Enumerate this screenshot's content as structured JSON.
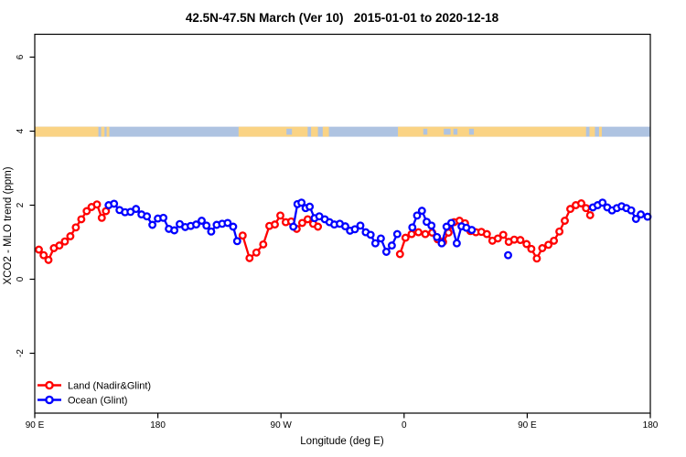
{
  "title": "42.5N-47.5N March (Ver 10)   2015-01-01 to 2020-12-18",
  "axes": {
    "x": {
      "label": "Longitude (deg E)",
      "tick_labels": [
        "90 E",
        "180",
        "90 W",
        "0",
        "90 E",
        "180"
      ],
      "tick_lons": [
        90,
        180,
        270,
        360,
        450,
        540
      ]
    },
    "y": {
      "label": "XCO2 - MLO trend (ppm)",
      "tick_labels": [
        "-2",
        "0",
        "2",
        "4",
        "6"
      ],
      "tick_values": [
        -2,
        0,
        2,
        4,
        6
      ]
    }
  },
  "legend": [
    {
      "label": "Land (Nadir&Glint)",
      "color": "#ff0000",
      "marker": "open-circle"
    },
    {
      "label": "Ocean (Glint)",
      "color": "#0000ff",
      "marker": "open-circle"
    }
  ],
  "chart_data": {
    "type": "line",
    "title": "42.5N-47.5N March (Ver 10)   2015-01-01 to 2020-12-18",
    "xlabel": "Longitude (deg E)",
    "ylabel": "XCO2 - MLO trend (ppm)",
    "xlim": [
      90,
      540
    ],
    "ylim": [
      -2.7,
      6.6
    ],
    "x_convention": "degrees east continuing across dateline: 90E,180,90W,0,90E,180",
    "grid": false,
    "legend_position": "bottom-left",
    "series": [
      {
        "name": "Land (Nadir&Glint)",
        "color": "#ff0000",
        "marker": "open-circle",
        "segments": [
          [
            [
              93,
              0.8
            ],
            [
              96.5,
              0.65
            ],
            [
              100,
              0.52
            ],
            [
              104,
              0.84
            ],
            [
              108,
              0.91
            ],
            [
              112,
              1.02
            ],
            [
              116,
              1.16
            ],
            [
              120,
              1.4
            ],
            [
              124,
              1.62
            ],
            [
              128,
              1.84
            ],
            [
              131.5,
              1.95
            ],
            [
              135.5,
              2.02
            ],
            [
              139,
              1.66
            ],
            [
              142,
              1.84
            ]
          ],
          [
            [
              242,
              1.18
            ],
            [
              247,
              0.57
            ],
            [
              252,
              0.72
            ],
            [
              257,
              0.94
            ],
            [
              261.5,
              1.44
            ],
            [
              265.5,
              1.48
            ],
            [
              269.5,
              1.72
            ],
            [
              273.5,
              1.54
            ],
            [
              277.5,
              1.56
            ],
            [
              281.5,
              1.36
            ],
            [
              285.5,
              1.52
            ],
            [
              289.5,
              1.62
            ],
            [
              293.5,
              1.5
            ],
            [
              297,
              1.42
            ]
          ],
          [
            [
              357,
              0.68
            ],
            [
              361,
              1.12
            ],
            [
              365.5,
              1.22
            ],
            [
              370.5,
              1.27
            ],
            [
              375.5,
              1.22
            ],
            [
              380.5,
              1.26
            ],
            [
              384.5,
              1.08
            ],
            [
              388.5,
              1.01
            ],
            [
              392.5,
              1.26
            ],
            [
              396.5,
              1.54
            ],
            [
              400.5,
              1.58
            ],
            [
              404.5,
              1.51
            ],
            [
              408.5,
              1.3
            ],
            [
              412.5,
              1.27
            ],
            [
              416.5,
              1.28
            ],
            [
              420.5,
              1.22
            ],
            [
              424.5,
              1.04
            ],
            [
              428.5,
              1.1
            ],
            [
              432.5,
              1.2
            ],
            [
              436.5,
              1.01
            ],
            [
              440.5,
              1.07
            ],
            [
              445,
              1.06
            ],
            [
              449.5,
              0.95
            ],
            [
              453,
              0.82
            ],
            [
              457,
              0.56
            ],
            [
              461,
              0.84
            ],
            [
              465.5,
              0.93
            ],
            [
              469.5,
              1.04
            ],
            [
              473.5,
              1.29
            ],
            [
              477.5,
              1.58
            ],
            [
              481.5,
              1.9
            ],
            [
              485.5,
              2.0
            ],
            [
              489.5,
              2.05
            ],
            [
              493,
              1.92
            ],
            [
              496,
              1.73
            ]
          ]
        ]
      },
      {
        "name": "Ocean (Glint)",
        "color": "#0000ff",
        "marker": "open-circle",
        "segments": [
          [
            [
              144,
              2.0
            ],
            [
              148,
              2.04
            ],
            [
              152,
              1.87
            ],
            [
              156,
              1.81
            ],
            [
              160,
              1.82
            ],
            [
              164,
              1.9
            ],
            [
              168,
              1.75
            ],
            [
              172,
              1.7
            ],
            [
              176,
              1.47
            ],
            [
              180,
              1.64
            ],
            [
              184,
              1.66
            ],
            [
              188,
              1.36
            ],
            [
              192,
              1.32
            ],
            [
              196,
              1.49
            ],
            [
              200,
              1.41
            ],
            [
              204,
              1.44
            ],
            [
              208,
              1.48
            ],
            [
              212,
              1.58
            ],
            [
              215.5,
              1.45
            ],
            [
              219,
              1.29
            ],
            [
              223,
              1.47
            ],
            [
              227,
              1.5
            ],
            [
              231,
              1.52
            ],
            [
              235,
              1.42
            ],
            [
              238,
              1.03
            ]
          ],
          [
            [
              279,
              1.42
            ],
            [
              282,
              2.03
            ],
            [
              285,
              2.07
            ],
            [
              288,
              1.92
            ],
            [
              291,
              1.96
            ],
            [
              294.5,
              1.65
            ],
            [
              298,
              1.7
            ],
            [
              302,
              1.62
            ],
            [
              305.5,
              1.54
            ],
            [
              309,
              1.48
            ],
            [
              313,
              1.5
            ],
            [
              317,
              1.43
            ],
            [
              320.5,
              1.31
            ],
            [
              324,
              1.35
            ],
            [
              328,
              1.45
            ],
            [
              332,
              1.27
            ],
            [
              335.5,
              1.2
            ],
            [
              339,
              0.97
            ],
            [
              343,
              1.1
            ],
            [
              347,
              0.74
            ],
            [
              351,
              0.91
            ],
            [
              355,
              1.22
            ]
          ],
          [
            [
              366,
              1.4
            ],
            [
              369.5,
              1.72
            ],
            [
              373,
              1.85
            ],
            [
              376.5,
              1.55
            ],
            [
              380,
              1.45
            ],
            [
              384,
              1.14
            ],
            [
              387.5,
              0.97
            ],
            [
              391,
              1.42
            ],
            [
              394.5,
              1.52
            ],
            [
              398.5,
              0.97
            ],
            [
              402,
              1.43
            ],
            [
              405.5,
              1.39
            ],
            [
              409.5,
              1.33
            ]
          ],
          [
            [
              436,
              0.65
            ]
          ],
          [
            [
              498,
              1.94
            ],
            [
              501.5,
              2.0
            ],
            [
              505,
              2.07
            ],
            [
              508.5,
              1.94
            ],
            [
              512,
              1.86
            ],
            [
              515.5,
              1.92
            ],
            [
              519,
              1.97
            ],
            [
              522.5,
              1.92
            ],
            [
              526,
              1.86
            ],
            [
              529.5,
              1.63
            ],
            [
              533,
              1.75
            ],
            [
              538,
              1.69
            ]
          ]
        ]
      }
    ],
    "map_band": {
      "description": "latitude-strip world map drawn across the plot at y~4",
      "y_range": [
        3.85,
        4.12
      ],
      "ocean_color": "#aec3e1",
      "land_color": "#fad384",
      "land_segments_lon": [
        [
          90,
          136.5
        ],
        [
          138.5,
          141
        ],
        [
          142.5,
          144.5
        ],
        [
          239,
          289.5
        ],
        [
          292,
          297
        ],
        [
          300.5,
          305
        ],
        [
          355.5,
          493
        ],
        [
          495.5,
          499.5
        ],
        [
          502.5,
          504.5
        ]
      ],
      "water_patches_lon": [
        [
          274,
          278
        ],
        [
          374,
          377
        ],
        [
          389,
          394
        ],
        [
          396,
          399
        ],
        [
          407.5,
          411
        ]
      ]
    }
  }
}
